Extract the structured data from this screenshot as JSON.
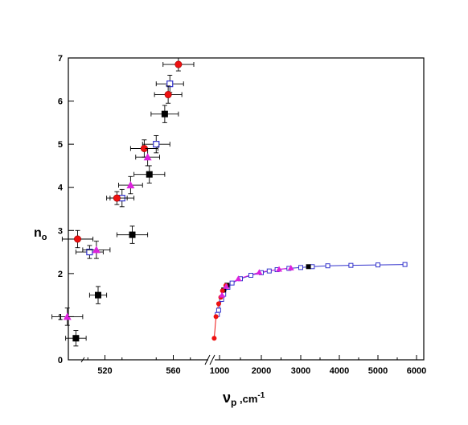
{
  "chart_data": {
    "type": "scatter",
    "xlabel_main": "ν",
    "xlabel_sub": "p",
    "xlabel_unit": " ,cm",
    "xlabel_exp": "-1",
    "ylabel_main": "n",
    "ylabel_sub": "o",
    "ylim": [
      0,
      7
    ],
    "y_ticks": [
      0,
      1,
      2,
      3,
      4,
      5,
      6,
      7
    ],
    "left_panel": {
      "x_ticks": [
        520,
        560
      ],
      "xlim": [
        500,
        580
      ],
      "series": [
        {
          "marker": "filled-square",
          "color": "#000000",
          "points": [
            {
              "x": 503,
              "y": 0.5,
              "xerr": 6,
              "yerr": 0.18
            },
            {
              "x": 516,
              "y": 1.5,
              "xerr": 5,
              "yerr": 0.2
            },
            {
              "x": 536,
              "y": 2.9,
              "xerr": 9,
              "yerr": 0.2
            },
            {
              "x": 546,
              "y": 4.3,
              "xerr": 9,
              "yerr": 0.2
            },
            {
              "x": 555,
              "y": 5.7,
              "xerr": 8,
              "yerr": 0.2
            }
          ]
        },
        {
          "marker": "open-square",
          "color": "#3333cc",
          "points": [
            {
              "x": 511,
              "y": 2.5,
              "xerr": 8,
              "yerr": 0.15
            },
            {
              "x": 530,
              "y": 3.75,
              "xerr": 7,
              "yerr": 0.2
            },
            {
              "x": 550,
              "y": 5.0,
              "xerr": 8,
              "yerr": 0.2
            },
            {
              "x": 558,
              "y": 6.4,
              "xerr": 8,
              "yerr": 0.2
            }
          ]
        },
        {
          "marker": "red-circle",
          "color": "#ee1111",
          "points": [
            {
              "x": 504,
              "y": 2.8,
              "xerr": 9,
              "yerr": 0.2
            },
            {
              "x": 527,
              "y": 3.75,
              "xerr": 6,
              "yerr": 0.15
            },
            {
              "x": 543,
              "y": 4.9,
              "xerr": 8,
              "yerr": 0.2
            },
            {
              "x": 557,
              "y": 6.15,
              "xerr": 8,
              "yerr": 0.2
            },
            {
              "x": 563,
              "y": 6.85,
              "xerr": 9,
              "yerr": 0.15
            }
          ]
        },
        {
          "marker": "magenta-triangle",
          "color": "#dd22dd",
          "points": [
            {
              "x": 498,
              "y": 1.0,
              "xerr": 9,
              "yerr": 0.2
            },
            {
              "x": 515,
              "y": 2.55,
              "xerr": 8,
              "yerr": 0.2
            },
            {
              "x": 535,
              "y": 4.05,
              "xerr": 7,
              "yerr": 0.2
            },
            {
              "x": 545,
              "y": 4.7,
              "xerr": 7,
              "yerr": 0.2
            }
          ]
        }
      ]
    },
    "right_panel": {
      "x_ticks": [
        1000,
        2000,
        3000,
        4000,
        5000,
        6000
      ],
      "xlim": [
        800,
        6200
      ],
      "series": [
        {
          "marker": "open-square",
          "color": "#3333cc",
          "line": true,
          "points": [
            [
              950,
              1.05
            ],
            [
              980,
              1.15
            ],
            [
              1050,
              1.4
            ],
            [
              1100,
              1.52
            ],
            [
              1200,
              1.68
            ],
            [
              1300,
              1.78
            ],
            [
              1500,
              1.88
            ],
            [
              1750,
              1.96
            ],
            [
              2000,
              2.02
            ],
            [
              2200,
              2.06
            ],
            [
              2400,
              2.09
            ],
            [
              2700,
              2.12
            ],
            [
              3000,
              2.14
            ],
            [
              3300,
              2.16
            ],
            [
              3700,
              2.18
            ],
            [
              4300,
              2.19
            ],
            [
              5000,
              2.2
            ],
            [
              5700,
              2.21
            ]
          ]
        },
        {
          "marker": "filled-square",
          "color": "#000000",
          "points": [
            [
              1100,
              1.62
            ],
            [
              1180,
              1.73
            ],
            [
              3200,
              2.16
            ]
          ]
        },
        {
          "marker": "red-circle",
          "color": "#ee1111",
          "line": true,
          "points": [
            [
              880,
              0.5
            ],
            [
              920,
              1.0
            ],
            [
              980,
              1.3
            ],
            [
              1030,
              1.45
            ],
            [
              1070,
              1.6
            ],
            [
              1150,
              1.72
            ]
          ]
        },
        {
          "marker": "magenta-triangle",
          "color": "#dd22dd",
          "line": true,
          "points": [
            [
              1060,
              1.5
            ],
            [
              1160,
              1.7
            ],
            [
              1450,
              1.88
            ],
            [
              1950,
              2.03
            ],
            [
              2450,
              2.1
            ],
            [
              2750,
              2.13
            ]
          ]
        }
      ]
    }
  }
}
